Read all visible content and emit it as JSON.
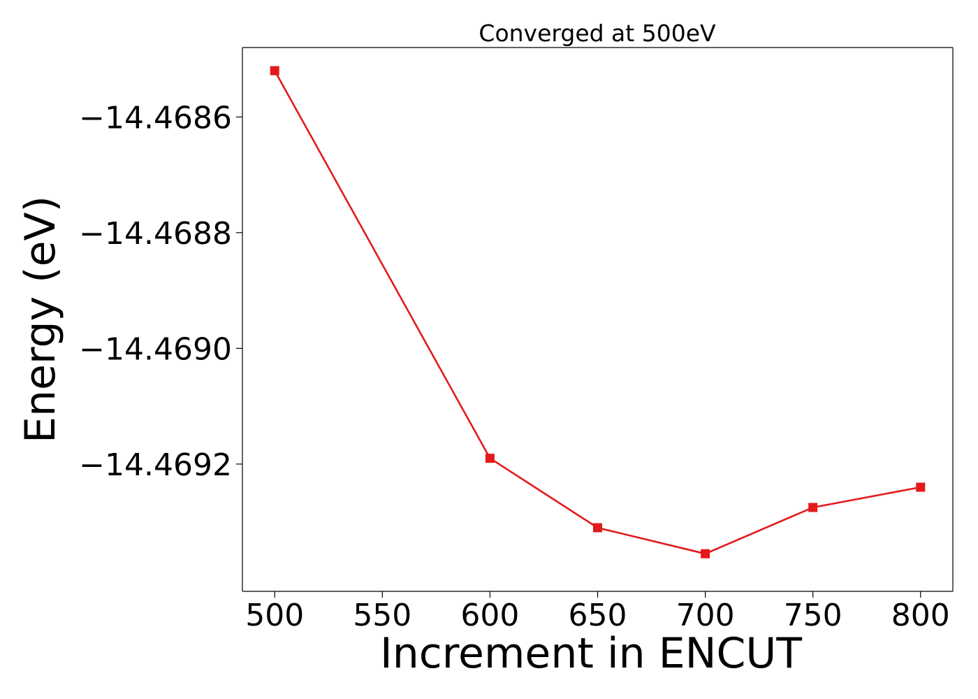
{
  "chart_data": {
    "type": "line",
    "title": "Converged at 500eV",
    "xlabel": "Increment in ENCUT",
    "ylabel": "Energy (eV)",
    "xlim": [
      485,
      815
    ],
    "ylim": [
      -14.46942,
      -14.46848
    ],
    "x_ticks": [
      500,
      550,
      600,
      650,
      700,
      750,
      800
    ],
    "x_tick_labels": [
      "500",
      "550",
      "600",
      "650",
      "700",
      "750",
      "800"
    ],
    "y_ticks": [
      -14.4686,
      -14.4688,
      -14.469,
      -14.4692
    ],
    "y_tick_labels": [
      "−14.4686",
      "−14.4688",
      "−14.4690",
      "−14.4692"
    ],
    "grid": false,
    "series": [
      {
        "marker": "square",
        "color": "#e31a1c",
        "x": [
          500,
          600,
          650,
          700,
          750,
          800
        ],
        "y": [
          -14.46852,
          -14.46919,
          -14.46931,
          -14.469355,
          -14.469275,
          -14.46924
        ]
      }
    ]
  }
}
